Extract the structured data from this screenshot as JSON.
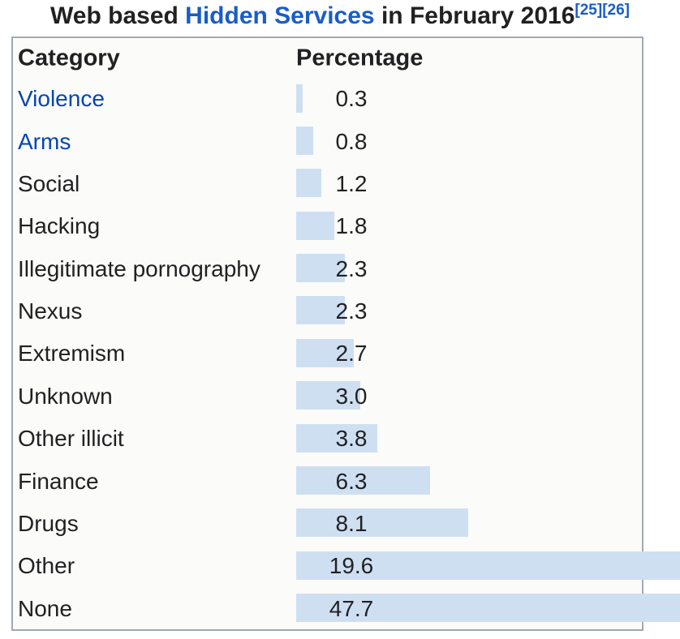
{
  "title": {
    "prefix": "Web based ",
    "link_text": "Hidden Services",
    "suffix": " in February 2016",
    "citation1": "[25]",
    "citation2": "[26]"
  },
  "table": {
    "header_category": "Category",
    "header_percentage": "Percentage"
  },
  "colors": {
    "bar_fill": "#cfdff2",
    "table_border": "#a2a9b1",
    "category_link_blue": "#0645ad",
    "title_link_blue": "#1a5cc8",
    "text": "#202122",
    "table_background": "#fbfbf9"
  },
  "chart_data": {
    "type": "bar",
    "orientation": "horizontal",
    "title": "Web based Hidden Services in February 2016",
    "column_headers": [
      "Category",
      "Percentage"
    ],
    "categories": [
      "Violence",
      "Arms",
      "Social",
      "Hacking",
      "Illegitimate pornography",
      "Nexus",
      "Extremism",
      "Unknown",
      "Other illicit",
      "Finance",
      "Drugs",
      "Other",
      "None"
    ],
    "values": [
      0.3,
      0.8,
      1.2,
      1.8,
      2.3,
      2.3,
      2.7,
      3.0,
      3.8,
      6.3,
      8.1,
      19.6,
      47.7
    ],
    "value_labels": [
      "0.3",
      "0.8",
      "1.2",
      "1.8",
      "2.3",
      "2.3",
      "2.7",
      "3.0",
      "3.8",
      "6.3",
      "8.1",
      "19.6",
      "47.7"
    ],
    "linked_categories": [
      "Violence",
      "Arms"
    ],
    "legend": false,
    "grid": false,
    "bars_overflow_table_right_edge": true
  }
}
